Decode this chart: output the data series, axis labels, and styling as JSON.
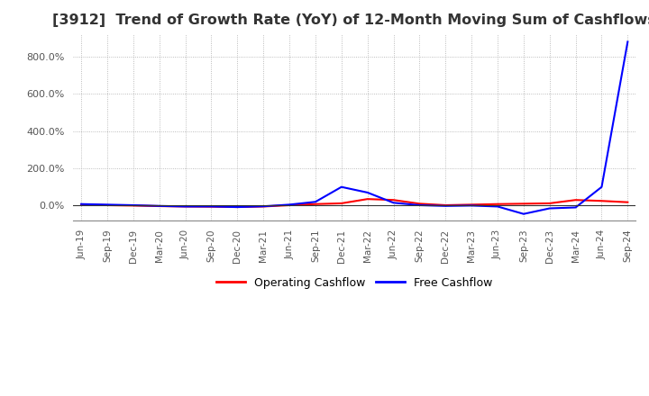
{
  "title": "[3912]  Trend of Growth Rate (YoY) of 12-Month Moving Sum of Cashflows",
  "title_fontsize": 11.5,
  "legend_labels": [
    "Operating Cashflow",
    "Free Cashflow"
  ],
  "legend_colors": [
    "#ff0000",
    "#0000ff"
  ],
  "x_labels": [
    "Jun-19",
    "Sep-19",
    "Dec-19",
    "Mar-20",
    "Jun-20",
    "Sep-20",
    "Dec-20",
    "Mar-21",
    "Jun-21",
    "Sep-21",
    "Dec-21",
    "Mar-22",
    "Jun-22",
    "Sep-22",
    "Dec-22",
    "Mar-23",
    "Jun-23",
    "Sep-23",
    "Dec-23",
    "Mar-24",
    "Jun-24",
    "Sep-24"
  ],
  "operating_cashflow": [
    5.0,
    2.0,
    0.0,
    -3.0,
    -5.0,
    -6.0,
    -8.0,
    -5.0,
    2.0,
    8.0,
    12.0,
    35.0,
    30.0,
    10.0,
    2.0,
    5.0,
    8.0,
    10.0,
    12.0,
    30.0,
    25.0,
    18.0
  ],
  "free_cashflow": [
    8.0,
    5.0,
    2.0,
    -2.0,
    -5.0,
    -5.0,
    -8.0,
    -4.0,
    5.0,
    20.0,
    100.0,
    70.0,
    15.0,
    2.0,
    -2.0,
    0.0,
    -5.0,
    -45.0,
    -15.0,
    -10.0,
    100.0,
    880.0
  ],
  "ylim": [
    -80,
    920
  ],
  "yticks": [
    0,
    200,
    400,
    600,
    800
  ],
  "grid_color": "#aaaaaa",
  "grid_style": "dotted",
  "background_color": "#ffffff",
  "line_width": 1.5
}
